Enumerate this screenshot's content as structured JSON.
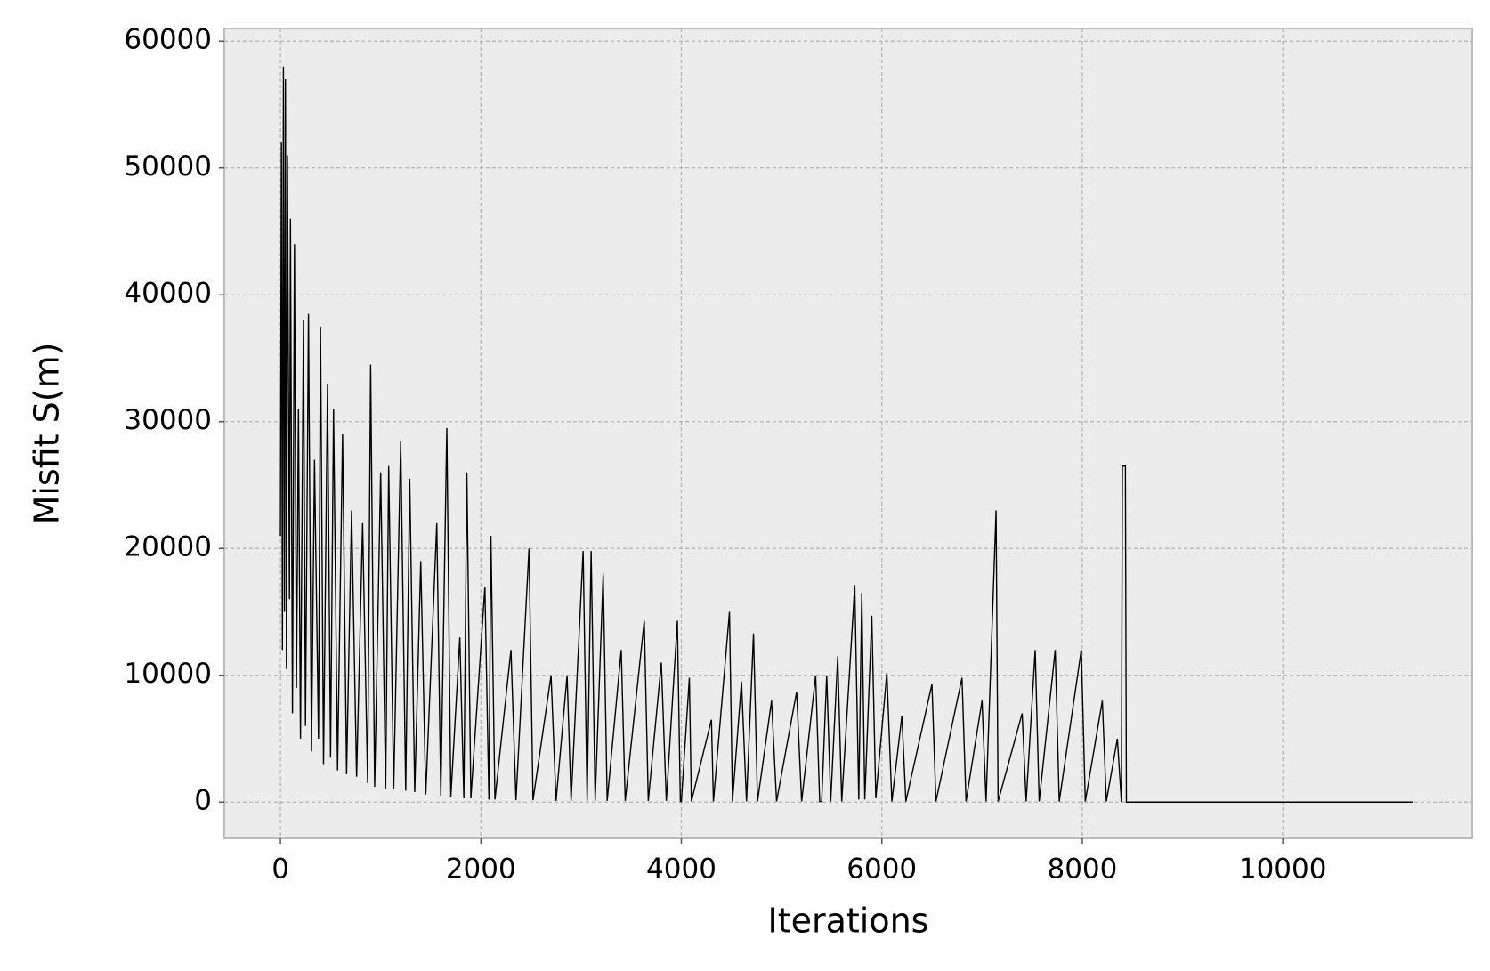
{
  "chart_data": {
    "type": "line",
    "xlabel": "Iterations",
    "ylabel": "Misfit  S(m)",
    "xlim": [
      -560,
      11890
    ],
    "ylim": [
      -2860,
      61000
    ],
    "xticks": [
      0,
      2000,
      4000,
      6000,
      8000,
      10000
    ],
    "yticks": [
      0,
      10000,
      20000,
      30000,
      40000,
      50000,
      60000
    ],
    "grid": true,
    "series": [
      {
        "color": "#000000",
        "x": [
          0,
          10,
          20,
          30,
          40,
          50,
          60,
          70,
          90,
          100,
          120,
          140,
          160,
          180,
          200,
          230,
          250,
          280,
          310,
          340,
          380,
          400,
          430,
          470,
          500,
          530,
          570,
          620,
          660,
          710,
          760,
          820,
          870,
          900,
          940,
          1000,
          1050,
          1080,
          1130,
          1200,
          1250,
          1290,
          1340,
          1400,
          1450,
          1560,
          1600,
          1660,
          1700,
          1790,
          1830,
          1860,
          1900,
          2040,
          2080,
          2100,
          2140,
          2300,
          2350,
          2480,
          2520,
          2700,
          2750,
          2860,
          2900,
          3020,
          3060,
          3100,
          3140,
          3220,
          3260,
          3400,
          3440,
          3630,
          3670,
          3800,
          3850,
          3960,
          3990,
          4000,
          4080,
          4100,
          4300,
          4320,
          4480,
          4510,
          4600,
          4650,
          4720,
          4760,
          4900,
          4950,
          5150,
          5200,
          5340,
          5380,
          5400,
          5450,
          5490,
          5560,
          5600,
          5730,
          5770,
          5800,
          5830,
          5900,
          5940,
          6050,
          6100,
          6200,
          6240,
          6500,
          6540,
          6800,
          6840,
          7000,
          7040,
          7140,
          7160,
          7400,
          7440,
          7530,
          7570,
          7730,
          7770,
          7990,
          8030,
          8200,
          8240,
          8350,
          8390,
          8400,
          8430,
          8440,
          11300
        ],
        "values": [
          21000,
          52000,
          12000,
          58000,
          15000,
          57000,
          10500,
          51000,
          16000,
          46000,
          7000,
          44000,
          9000,
          31000,
          5000,
          38000,
          6000,
          38500,
          4000,
          27000,
          5000,
          37500,
          3000,
          33000,
          3500,
          31000,
          2500,
          29000,
          2200,
          23000,
          2000,
          22000,
          1500,
          34500,
          1200,
          26000,
          1000,
          26500,
          1000,
          28500,
          900,
          25500,
          800,
          19000,
          600,
          22000,
          500,
          29500,
          400,
          13000,
          300,
          26000,
          300,
          17000,
          200,
          21000,
          200,
          12000,
          150,
          20000,
          150,
          10000,
          100,
          10000,
          100,
          19800,
          100,
          19800,
          100,
          18000,
          100,
          12000,
          100,
          14300,
          100,
          11000,
          100,
          14300,
          50,
          50,
          9800,
          50,
          6500,
          50,
          15000,
          50,
          9500,
          50,
          13300,
          50,
          8000,
          50,
          8700,
          50,
          10000,
          50,
          50,
          10000,
          50,
          11500,
          50,
          17100,
          200,
          16500,
          200,
          14700,
          300,
          10200,
          50,
          6800,
          50,
          9300,
          50,
          9800,
          50,
          8000,
          50,
          23000,
          50,
          7000,
          50,
          12000,
          50,
          12000,
          50,
          12000,
          50,
          8000,
          50,
          5000,
          0,
          26500,
          26500,
          0,
          0
        ]
      }
    ]
  }
}
